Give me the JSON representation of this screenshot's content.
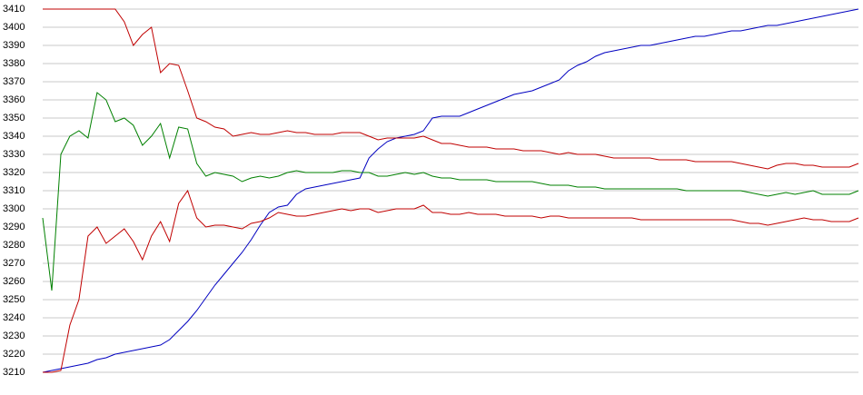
{
  "chart_data": {
    "type": "line",
    "ylim": [
      3210,
      3410
    ],
    "yticks": [
      3210,
      3220,
      3230,
      3240,
      3250,
      3260,
      3270,
      3280,
      3290,
      3300,
      3310,
      3320,
      3330,
      3340,
      3350,
      3360,
      3370,
      3380,
      3390,
      3400,
      3410
    ],
    "grid": true,
    "series": [
      {
        "color": "#0000c0",
        "values": [
          3210,
          3211,
          3212,
          3213,
          3214,
          3215,
          3217,
          3218,
          3220,
          3221,
          3222,
          3223,
          3224,
          3225,
          3228,
          3233,
          3238,
          3244,
          3251,
          3258,
          3264,
          3270,
          3276,
          3283,
          3291,
          3298,
          3301,
          3302,
          3308,
          3311,
          3312,
          3313,
          3314,
          3315,
          3316,
          3317,
          3328,
          3333,
          3337,
          3339,
          3340,
          3341,
          3343,
          3350,
          3351,
          3351,
          3351,
          3353,
          3355,
          3357,
          3359,
          3361,
          3363,
          3364,
          3365,
          3367,
          3369,
          3371,
          3376,
          3379,
          3381,
          3384,
          3386,
          3387,
          3388,
          3389,
          3390,
          3390,
          3391,
          3392,
          3393,
          3394,
          3395,
          3395,
          3396,
          3397,
          3398,
          3398,
          3399,
          3400,
          3401,
          3401,
          3402,
          3403,
          3404,
          3405,
          3406,
          3407,
          3408,
          3409,
          3410
        ]
      },
      {
        "color": "#c00000",
        "values": [
          3410,
          3410,
          3410,
          3410,
          3410,
          3410,
          3410,
          3410,
          3410,
          3403,
          3390,
          3396,
          3400,
          3375,
          3380,
          3379,
          3365,
          3350,
          3348,
          3345,
          3344,
          3340,
          3341,
          3342,
          3341,
          3341,
          3342,
          3343,
          3342,
          3342,
          3341,
          3341,
          3341,
          3342,
          3342,
          3342,
          3340,
          3338,
          3339,
          3339,
          3339,
          3339,
          3340,
          3338,
          3336,
          3336,
          3335,
          3334,
          3334,
          3334,
          3333,
          3333,
          3333,
          3332,
          3332,
          3332,
          3331,
          3330,
          3331,
          3330,
          3330,
          3330,
          3329,
          3328,
          3328,
          3328,
          3328,
          3328,
          3327,
          3327,
          3327,
          3327,
          3326,
          3326,
          3326,
          3326,
          3326,
          3325,
          3324,
          3323,
          3322,
          3324,
          3325,
          3325,
          3324,
          3324,
          3323,
          3323,
          3323,
          3323,
          3325
        ]
      },
      {
        "color": "#008000",
        "values": [
          3295,
          3255,
          3330,
          3340,
          3343,
          3339,
          3364,
          3360,
          3348,
          3350,
          3346,
          3335,
          3340,
          3347,
          3328,
          3345,
          3344,
          3325,
          3318,
          3320,
          3319,
          3318,
          3315,
          3317,
          3318,
          3317,
          3318,
          3320,
          3321,
          3320,
          3320,
          3320,
          3320,
          3321,
          3321,
          3320,
          3320,
          3318,
          3318,
          3319,
          3320,
          3319,
          3320,
          3318,
          3317,
          3317,
          3316,
          3316,
          3316,
          3316,
          3315,
          3315,
          3315,
          3315,
          3315,
          3314,
          3313,
          3313,
          3313,
          3312,
          3312,
          3312,
          3311,
          3311,
          3311,
          3311,
          3311,
          3311,
          3311,
          3311,
          3311,
          3310,
          3310,
          3310,
          3310,
          3310,
          3310,
          3310,
          3309,
          3308,
          3307,
          3308,
          3309,
          3308,
          3309,
          3310,
          3308,
          3308,
          3308,
          3308,
          3310
        ]
      },
      {
        "color": "#c00000",
        "values": [
          3210,
          3210,
          3211,
          3236,
          3250,
          3285,
          3290,
          3281,
          3285,
          3289,
          3282,
          3272,
          3285,
          3293,
          3282,
          3303,
          3310,
          3295,
          3290,
          3291,
          3291,
          3290,
          3289,
          3292,
          3293,
          3295,
          3298,
          3297,
          3296,
          3296,
          3297,
          3298,
          3299,
          3300,
          3299,
          3300,
          3300,
          3298,
          3299,
          3300,
          3300,
          3300,
          3302,
          3298,
          3298,
          3297,
          3297,
          3298,
          3297,
          3297,
          3297,
          3296,
          3296,
          3296,
          3296,
          3295,
          3296,
          3296,
          3295,
          3295,
          3295,
          3295,
          3295,
          3295,
          3295,
          3295,
          3294,
          3294,
          3294,
          3294,
          3294,
          3294,
          3294,
          3294,
          3294,
          3294,
          3294,
          3293,
          3292,
          3292,
          3291,
          3292,
          3293,
          3294,
          3295,
          3294,
          3294,
          3293,
          3293,
          3293,
          3295
        ]
      }
    ]
  }
}
